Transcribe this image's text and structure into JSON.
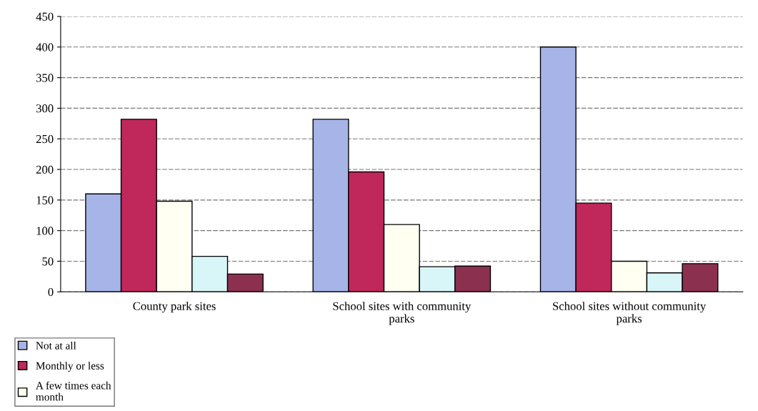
{
  "chart_data": {
    "type": "bar",
    "categories": [
      "County park sites",
      "School sites with community parks",
      "School sites without community parks"
    ],
    "series": [
      {
        "name": "Not at all",
        "color": "#a6b4e8",
        "values": [
          160,
          282,
          400
        ]
      },
      {
        "name": "Monthly or less",
        "color": "#c0275a",
        "values": [
          282,
          196,
          145
        ]
      },
      {
        "name": "A few times each month",
        "color": "#fffff2",
        "values": [
          148,
          110,
          50
        ]
      },
      {
        "color": "#d8f6f8",
        "values": [
          58,
          41,
          31
        ]
      },
      {
        "color": "#8c3050",
        "values": [
          29,
          42,
          46
        ]
      }
    ],
    "ylim": [
      0,
      450
    ],
    "yticks": [
      0,
      50,
      100,
      150,
      200,
      250,
      300,
      350,
      400,
      450
    ],
    "grid": "y",
    "legend": "bottom left"
  }
}
